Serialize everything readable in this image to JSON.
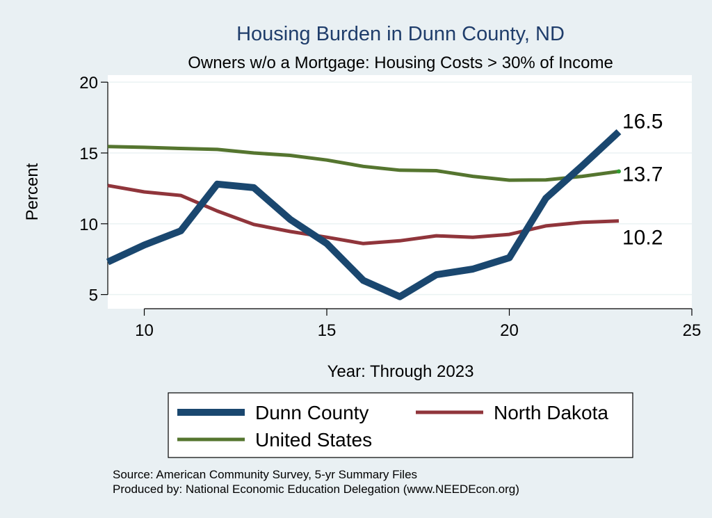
{
  "chart_data": {
    "type": "line",
    "title": "Housing Burden in Dunn County, ND",
    "subtitle": "Owners w/o a Mortgage: Housing Costs > 30% of Income",
    "xlabel": "Year: Through 2023",
    "ylabel": "Percent",
    "xlim": [
      9,
      25
    ],
    "ylim": [
      4,
      20.5
    ],
    "xticks": [
      10,
      15,
      20,
      25
    ],
    "yticks": [
      5,
      10,
      15,
      20
    ],
    "grid": true,
    "legend_position": "bottom",
    "x": [
      9,
      10,
      11,
      12,
      13,
      14,
      15,
      16,
      17,
      18,
      19,
      20,
      21,
      22,
      23
    ],
    "series": [
      {
        "name": "Dunn County",
        "color": "#1a476f",
        "values": [
          7.3,
          8.5,
          9.5,
          12.8,
          12.55,
          10.3,
          8.6,
          6.0,
          4.85,
          6.4,
          6.8,
          7.6,
          11.8,
          14.1,
          16.5
        ],
        "end_label": "16.5"
      },
      {
        "name": "North Dakota",
        "color": "#90353b",
        "values": [
          12.7,
          12.25,
          12.0,
          10.9,
          9.95,
          9.45,
          9.05,
          8.6,
          8.8,
          9.15,
          9.05,
          9.25,
          9.85,
          10.1,
          10.2
        ],
        "end_label": "10.2"
      },
      {
        "name": "United States",
        "color": "#55752f",
        "values": [
          15.45,
          15.4,
          15.32,
          15.25,
          15.0,
          14.83,
          14.5,
          14.05,
          13.78,
          13.75,
          13.35,
          13.08,
          13.1,
          13.35,
          13.7
        ],
        "end_label": "13.7"
      }
    ]
  },
  "notes": {
    "source": "Source: American Community Survey, 5-yr Summary Files",
    "produced": "Produced by: National Economic Education Delegation (www.NEEDEcon.org)"
  }
}
